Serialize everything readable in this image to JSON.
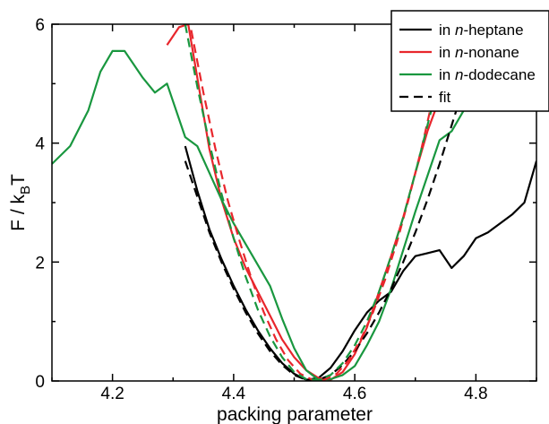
{
  "chart_data": {
    "type": "line",
    "xlabel": "packing parameter",
    "ylabel": "F  /  k",
    "ylabel_sub": "B",
    "ylabel_suffix": "T",
    "xlim": [
      4.1,
      4.9
    ],
    "ylim": [
      0,
      6
    ],
    "x_ticks": [
      4.2,
      4.4,
      4.6,
      4.8
    ],
    "x_tick_labels": [
      "4.2",
      "4.4",
      "4.6",
      "4.8"
    ],
    "y_ticks": [
      0,
      2,
      4,
      6
    ],
    "y_tick_labels": [
      "0",
      "2",
      "4",
      "6"
    ],
    "legend_position": "top-right",
    "legend": [
      {
        "prefix": "in ",
        "italic": "n",
        "suffix": "-heptane",
        "color": "#000000",
        "dash": false
      },
      {
        "prefix": "in ",
        "italic": "n",
        "suffix": "-nonane",
        "color": "#e8262c",
        "dash": false
      },
      {
        "prefix": "in ",
        "italic": "n",
        "suffix": "-dodecane",
        "color": "#19973f",
        "dash": false
      },
      {
        "prefix": "",
        "italic": "",
        "suffix": "fit",
        "color": "#000000",
        "dash": true
      }
    ],
    "series": [
      {
        "name": "in n-heptane",
        "color": "#000000",
        "dash": false,
        "x": [
          4.32,
          4.34,
          4.36,
          4.38,
          4.4,
          4.42,
          4.44,
          4.46,
          4.48,
          4.5,
          4.52,
          4.54,
          4.56,
          4.58,
          4.6,
          4.62,
          4.64,
          4.66,
          4.68,
          4.7,
          4.72,
          4.74,
          4.76,
          4.78,
          4.8,
          4.82,
          4.84,
          4.86,
          4.88,
          4.9
        ],
        "y": [
          3.95,
          3.2,
          2.55,
          2.05,
          1.6,
          1.2,
          0.85,
          0.55,
          0.3,
          0.12,
          0.02,
          0.05,
          0.22,
          0.5,
          0.85,
          1.15,
          1.35,
          1.5,
          1.85,
          2.1,
          2.15,
          2.2,
          1.9,
          2.1,
          2.4,
          2.5,
          2.65,
          2.8,
          3.0,
          3.7
        ]
      },
      {
        "name": "in n-nonane",
        "color": "#e8262c",
        "dash": false,
        "x": [
          4.29,
          4.31,
          4.325,
          4.34,
          4.36,
          4.38,
          4.4,
          4.42,
          4.44,
          4.46,
          4.48,
          4.5,
          4.52,
          4.54,
          4.56,
          4.58,
          4.6,
          4.62,
          4.64,
          4.66,
          4.68,
          4.7,
          4.72,
          4.74,
          4.76,
          4.78
        ],
        "y": [
          5.65,
          5.95,
          6.0,
          5.1,
          3.9,
          3.05,
          2.4,
          1.9,
          1.5,
          1.1,
          0.7,
          0.4,
          0.18,
          0.05,
          0.02,
          0.15,
          0.45,
          0.9,
          1.5,
          2.1,
          2.75,
          3.5,
          4.2,
          4.75,
          5.1,
          5.3
        ]
      },
      {
        "name": "in n-dodecane",
        "color": "#19973f",
        "dash": false,
        "x": [
          4.1,
          4.13,
          4.16,
          4.18,
          4.2,
          4.22,
          4.25,
          4.27,
          4.29,
          4.32,
          4.34,
          4.36,
          4.38,
          4.4,
          4.42,
          4.44,
          4.46,
          4.48,
          4.5,
          4.52,
          4.54,
          4.56,
          4.58,
          4.6,
          4.62,
          4.64,
          4.66,
          4.68,
          4.7,
          4.72,
          4.74,
          4.76,
          4.78
        ],
        "y": [
          3.65,
          3.95,
          4.55,
          5.2,
          5.55,
          5.55,
          5.1,
          4.85,
          5.0,
          4.1,
          3.95,
          3.5,
          3.05,
          2.65,
          2.3,
          1.95,
          1.6,
          1.05,
          0.55,
          0.18,
          0.02,
          0.03,
          0.1,
          0.25,
          0.6,
          1.0,
          1.55,
          2.2,
          2.85,
          3.45,
          4.05,
          4.2,
          4.55
        ]
      },
      {
        "name": "fit (n-heptane)",
        "color": "#000000",
        "dash": true,
        "x": [
          4.32,
          4.34,
          4.36,
          4.38,
          4.4,
          4.42,
          4.44,
          4.46,
          4.48,
          4.5,
          4.52,
          4.54,
          4.56,
          4.58,
          4.6,
          4.62,
          4.64,
          4.66,
          4.68,
          4.7,
          4.72,
          4.74,
          4.76,
          4.78
        ],
        "y": [
          3.7,
          3.1,
          2.5,
          2.0,
          1.55,
          1.15,
          0.8,
          0.5,
          0.27,
          0.1,
          0.02,
          0.02,
          0.1,
          0.27,
          0.5,
          0.8,
          1.15,
          1.55,
          2.0,
          2.5,
          3.05,
          3.65,
          4.3,
          4.95
        ]
      },
      {
        "name": "fit (n-nonane)",
        "color": "#e8262c",
        "dash": true,
        "x": [
          4.33,
          4.35,
          4.37,
          4.39,
          4.41,
          4.43,
          4.45,
          4.47,
          4.49,
          4.51,
          4.53,
          4.55,
          4.57,
          4.59,
          4.61,
          4.63,
          4.65,
          4.67,
          4.69,
          4.71,
          4.73,
          4.75
        ],
        "y": [
          5.9,
          4.85,
          3.9,
          3.05,
          2.35,
          1.7,
          1.15,
          0.7,
          0.35,
          0.12,
          0.02,
          0.02,
          0.12,
          0.35,
          0.7,
          1.15,
          1.7,
          2.35,
          3.1,
          3.9,
          4.8,
          5.6
        ]
      },
      {
        "name": "fit (n-dodecane)",
        "color": "#19973f",
        "dash": true,
        "x": [
          4.32,
          4.34,
          4.36,
          4.38,
          4.4,
          4.42,
          4.44,
          4.46,
          4.48,
          4.5,
          4.52,
          4.54,
          4.56,
          4.58,
          4.6,
          4.62,
          4.64,
          4.66,
          4.68,
          4.7,
          4.72,
          4.74,
          4.76,
          4.78
        ],
        "y": [
          6.0,
          4.95,
          4.0,
          3.15,
          2.4,
          1.75,
          1.2,
          0.75,
          0.4,
          0.15,
          0.03,
          0.02,
          0.1,
          0.3,
          0.6,
          1.0,
          1.5,
          2.1,
          2.75,
          3.5,
          4.3,
          5.1,
          5.8,
          6.0
        ]
      }
    ]
  }
}
